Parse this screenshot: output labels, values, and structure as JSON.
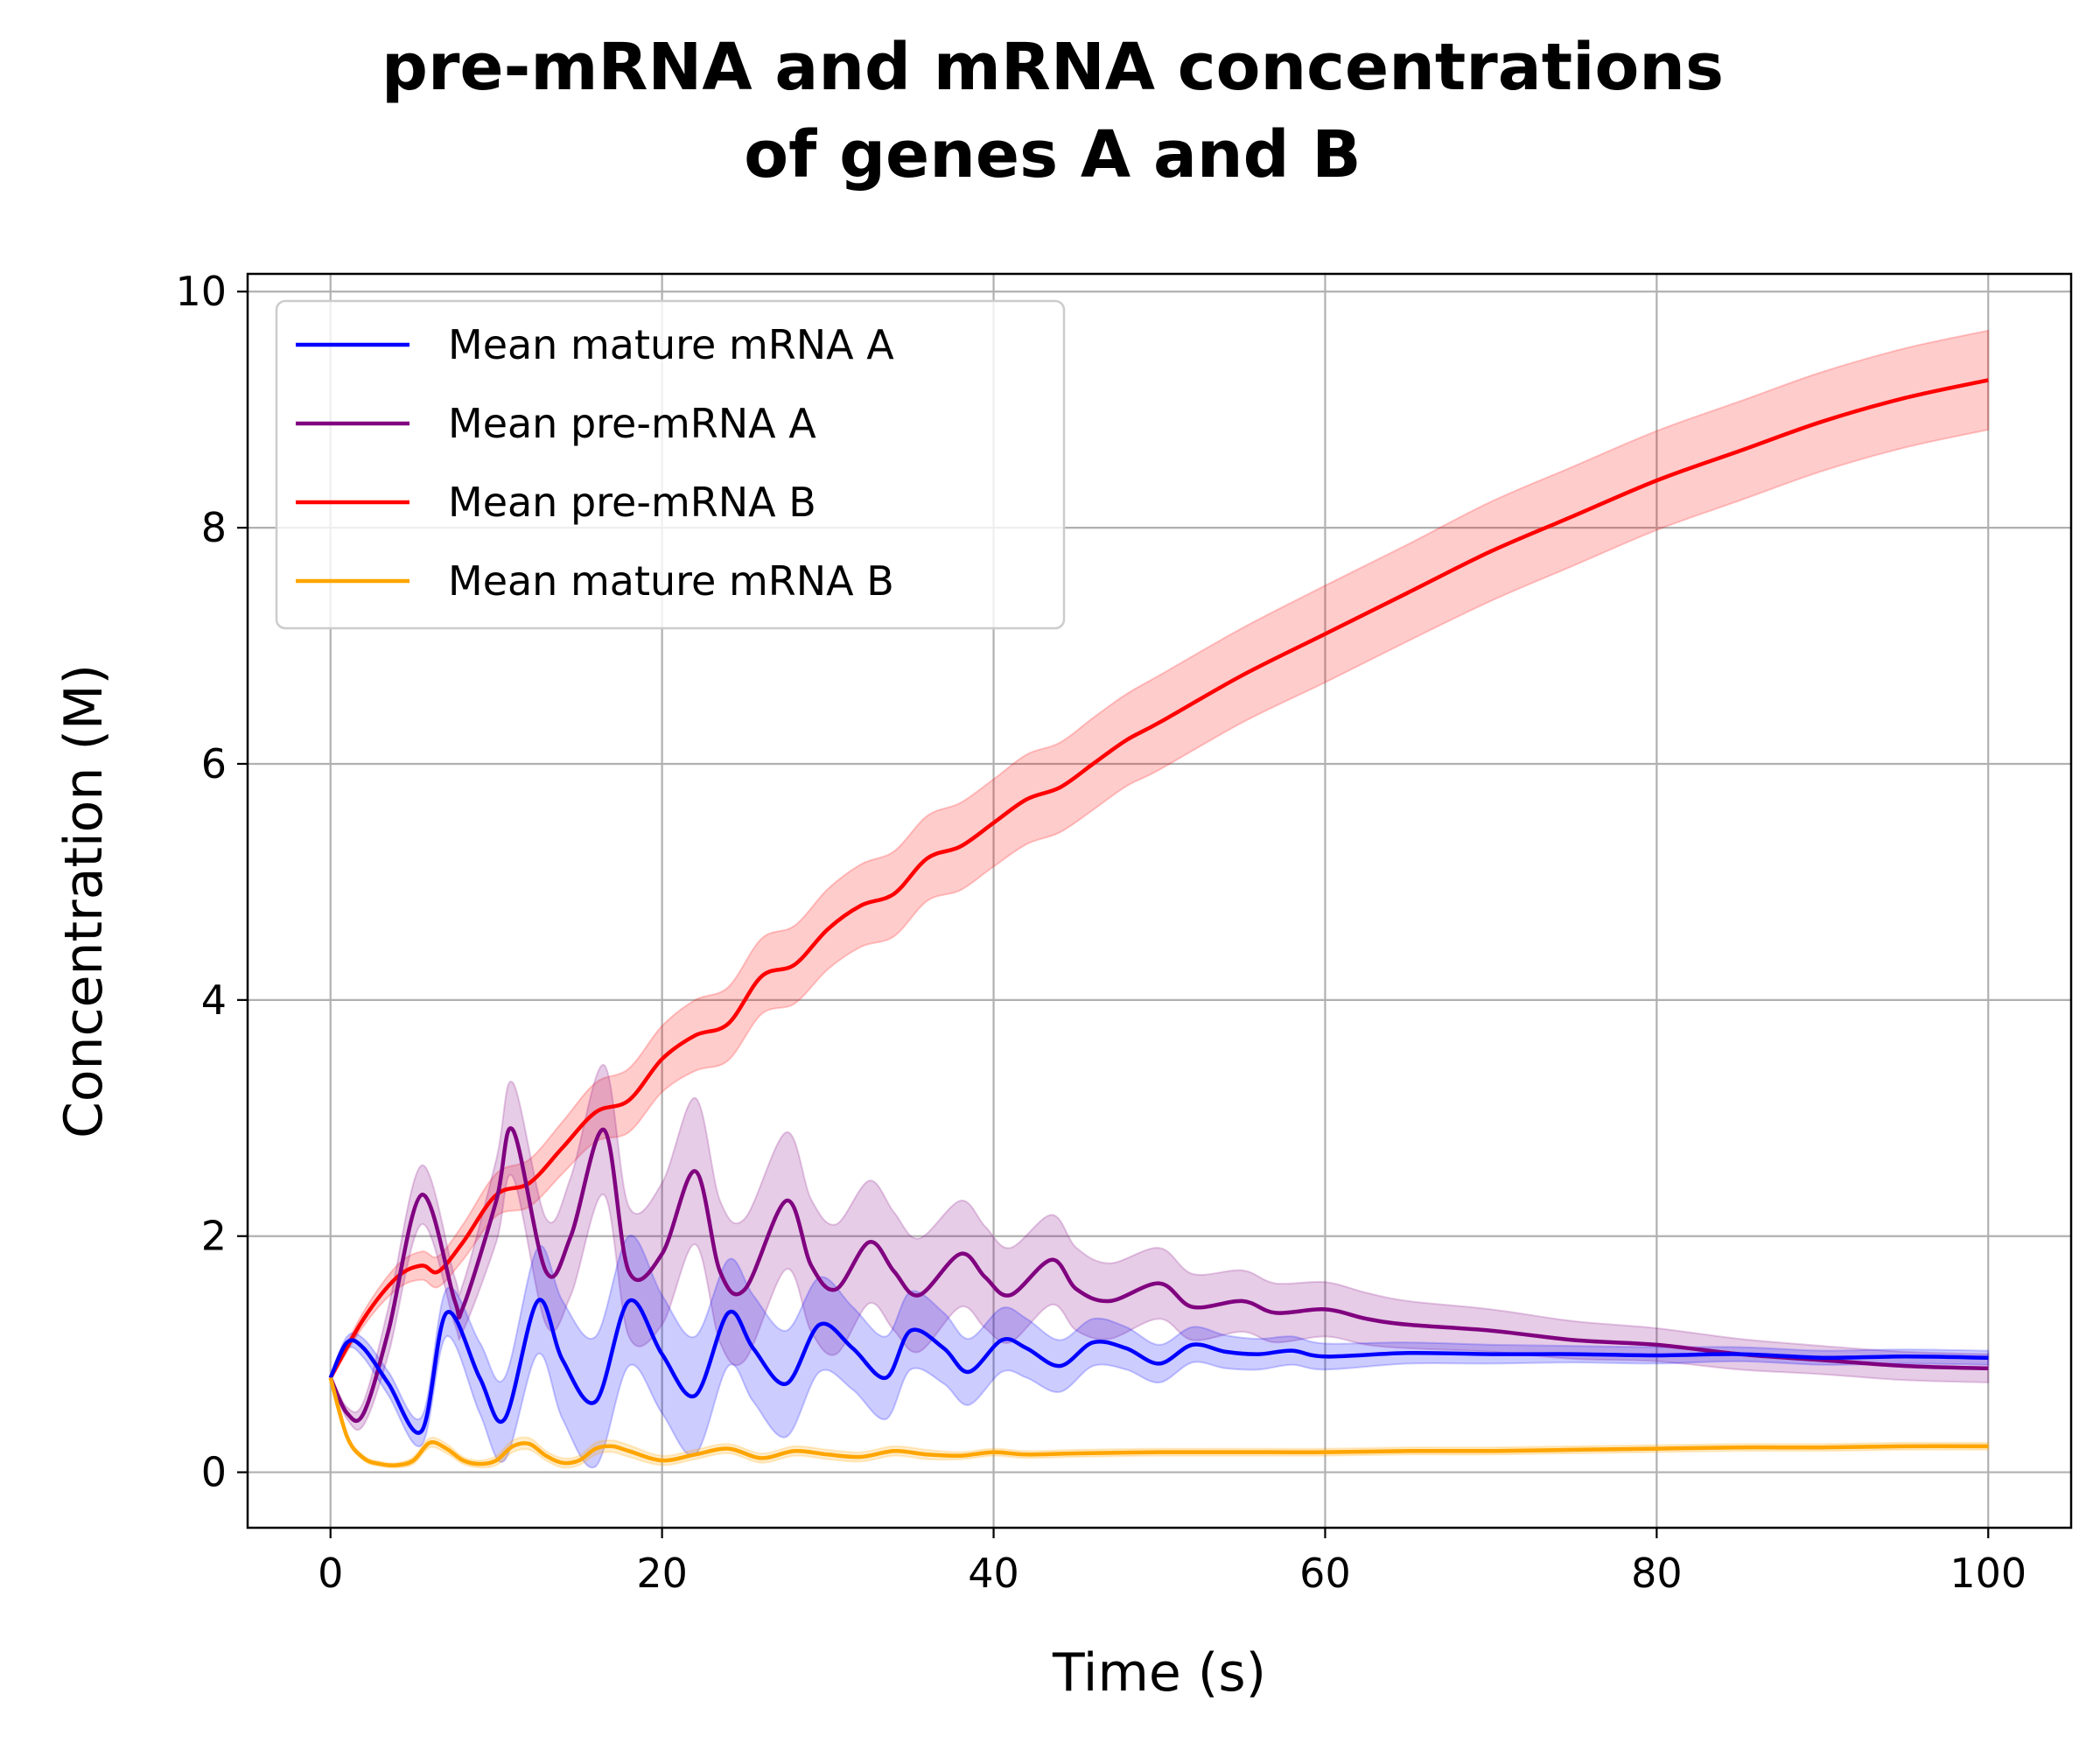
{
  "chart_data": {
    "type": "line",
    "title_lines": [
      "pre-mRNA and mRNA concentrations",
      "of genes A and B"
    ],
    "xlabel": "Time (s)",
    "ylabel": "Concentration (M)",
    "xlim": [
      -5,
      105
    ],
    "ylim": [
      -0.47,
      10.15
    ],
    "xticks": [
      0,
      20,
      40,
      60,
      80,
      100
    ],
    "xtick_labels": [
      "0",
      "20",
      "40",
      "60",
      "80",
      "100"
    ],
    "yticks": [
      0,
      2,
      4,
      6,
      8,
      10
    ],
    "ytick_labels": [
      "0",
      "2",
      "4",
      "6",
      "8",
      "10"
    ],
    "grid": true,
    "legend_position": "upper-left",
    "shaded_band": "mean ± spread",
    "series": [
      {
        "name": "Mean mature mRNA A",
        "color": "#0000ff",
        "x": [
          0,
          1,
          2,
          3.5,
          5.5,
          7,
          9,
          10.5,
          12.5,
          14,
          16,
          18,
          20,
          22,
          24,
          25.5,
          27.5,
          29.5,
          31.5,
          33.5,
          35,
          37,
          38.5,
          40.5,
          42,
          44,
          46,
          48,
          50,
          52,
          54,
          56,
          58,
          60,
          65,
          70,
          75,
          80,
          85,
          90,
          95,
          100
        ],
        "y": [
          0.8,
          1.1,
          1.05,
          0.75,
          0.35,
          1.35,
          0.8,
          0.45,
          1.45,
          0.95,
          0.6,
          1.45,
          1.0,
          0.65,
          1.35,
          1.05,
          0.75,
          1.25,
          1.05,
          0.8,
          1.2,
          1.05,
          0.85,
          1.12,
          1.05,
          0.9,
          1.1,
          1.05,
          0.92,
          1.08,
          1.02,
          1.0,
          1.03,
          0.98,
          1.01,
          1.0,
          1.0,
          0.99,
          1.0,
          0.97,
          0.98,
          0.97
        ],
        "spread": [
          0.02,
          0.05,
          0.08,
          0.1,
          0.12,
          0.2,
          0.3,
          0.35,
          0.45,
          0.5,
          0.55,
          0.55,
          0.5,
          0.5,
          0.45,
          0.45,
          0.45,
          0.4,
          0.35,
          0.35,
          0.33,
          0.3,
          0.28,
          0.27,
          0.25,
          0.22,
          0.2,
          0.18,
          0.16,
          0.15,
          0.14,
          0.13,
          0.12,
          0.11,
          0.09,
          0.08,
          0.07,
          0.07,
          0.06,
          0.06,
          0.06,
          0.06
        ]
      },
      {
        "name": "Mean pre-mRNA A",
        "color": "#800080",
        "x": [
          0,
          1,
          2,
          3.5,
          5.5,
          7.5,
          8,
          10,
          11,
          13,
          14.5,
          16.5,
          18,
          20,
          22,
          23.5,
          25,
          27.5,
          29,
          30.5,
          32.5,
          34,
          35.5,
          38,
          39.5,
          41,
          43.5,
          45,
          47,
          50,
          52,
          55,
          57,
          60,
          62.5,
          65,
          70,
          75,
          80,
          85,
          90,
          95,
          100
        ],
        "y": [
          0.8,
          0.5,
          0.5,
          1.2,
          2.35,
          1.45,
          1.4,
          2.3,
          2.9,
          1.7,
          2.0,
          2.9,
          1.7,
          1.85,
          2.55,
          1.7,
          1.55,
          2.3,
          1.75,
          1.55,
          1.95,
          1.7,
          1.5,
          1.85,
          1.65,
          1.5,
          1.8,
          1.55,
          1.45,
          1.6,
          1.4,
          1.45,
          1.35,
          1.38,
          1.3,
          1.25,
          1.2,
          1.12,
          1.08,
          1.0,
          0.95,
          0.9,
          0.88
        ],
        "spread": [
          0.02,
          0.05,
          0.1,
          0.2,
          0.25,
          0.2,
          0.2,
          0.35,
          0.4,
          0.45,
          0.5,
          0.55,
          0.55,
          0.6,
          0.62,
          0.6,
          0.6,
          0.58,
          0.56,
          0.55,
          0.52,
          0.5,
          0.48,
          0.45,
          0.43,
          0.4,
          0.38,
          0.35,
          0.32,
          0.3,
          0.28,
          0.26,
          0.25,
          0.23,
          0.22,
          0.2,
          0.18,
          0.16,
          0.14,
          0.13,
          0.12,
          0.12,
          0.12
        ]
      },
      {
        "name": "Mean pre-mRNA B",
        "color": "#ff0000",
        "x": [
          0,
          2,
          4,
          5.5,
          6.5,
          8,
          10,
          12,
          14,
          16,
          18,
          20,
          22,
          24,
          26,
          28,
          30,
          32,
          34,
          36,
          38,
          40,
          42,
          44,
          46,
          48,
          50,
          55,
          60,
          65,
          70,
          75,
          80,
          85,
          90,
          95,
          100
        ],
        "y": [
          0.8,
          1.3,
          1.65,
          1.75,
          1.7,
          1.95,
          2.35,
          2.45,
          2.75,
          3.05,
          3.15,
          3.5,
          3.7,
          3.8,
          4.2,
          4.3,
          4.6,
          4.8,
          4.9,
          5.2,
          5.3,
          5.5,
          5.7,
          5.8,
          6.0,
          6.2,
          6.35,
          6.75,
          7.1,
          7.45,
          7.8,
          8.1,
          8.4,
          8.65,
          8.9,
          9.1,
          9.25
        ],
        "spread": [
          0.02,
          0.06,
          0.1,
          0.12,
          0.13,
          0.15,
          0.18,
          0.2,
          0.22,
          0.25,
          0.27,
          0.28,
          0.3,
          0.31,
          0.32,
          0.33,
          0.34,
          0.35,
          0.36,
          0.36,
          0.37,
          0.37,
          0.38,
          0.38,
          0.39,
          0.39,
          0.4,
          0.4,
          0.41,
          0.41,
          0.42,
          0.42,
          0.42,
          0.42,
          0.42,
          0.42,
          0.42
        ]
      },
      {
        "name": "Mean mature mRNA B",
        "color": "#ffa500",
        "x": [
          0,
          1,
          2,
          3,
          4,
          5,
          6,
          7,
          8,
          9,
          10,
          11,
          12,
          13,
          14,
          15,
          16,
          17,
          18,
          20,
          22,
          24,
          26,
          28,
          30,
          32,
          34,
          36,
          38,
          40,
          42,
          45,
          50,
          55,
          60,
          65,
          70,
          75,
          80,
          85,
          90,
          95,
          100
        ],
        "y": [
          0.8,
          0.3,
          0.12,
          0.07,
          0.06,
          0.1,
          0.25,
          0.2,
          0.1,
          0.07,
          0.1,
          0.22,
          0.24,
          0.14,
          0.08,
          0.1,
          0.2,
          0.22,
          0.18,
          0.1,
          0.15,
          0.2,
          0.12,
          0.18,
          0.15,
          0.13,
          0.18,
          0.15,
          0.14,
          0.17,
          0.15,
          0.16,
          0.17,
          0.17,
          0.17,
          0.18,
          0.18,
          0.19,
          0.2,
          0.21,
          0.21,
          0.22,
          0.22
        ],
        "spread": [
          0.01,
          0.02,
          0.02,
          0.02,
          0.02,
          0.03,
          0.04,
          0.04,
          0.03,
          0.03,
          0.04,
          0.05,
          0.05,
          0.04,
          0.04,
          0.04,
          0.05,
          0.05,
          0.05,
          0.04,
          0.04,
          0.04,
          0.04,
          0.04,
          0.04,
          0.04,
          0.04,
          0.04,
          0.03,
          0.03,
          0.03,
          0.03,
          0.03,
          0.03,
          0.03,
          0.03,
          0.03,
          0.03,
          0.03,
          0.03,
          0.03,
          0.03,
          0.03
        ]
      }
    ]
  }
}
